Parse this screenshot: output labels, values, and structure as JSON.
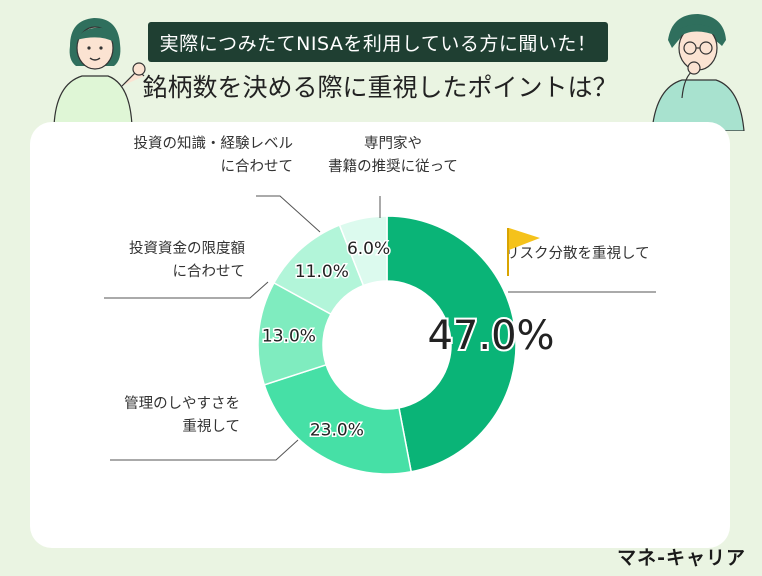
{
  "header": {
    "banner": "実際につみたてNISAを利用している方に聞いた！",
    "title": "銘柄数を決める際に重視したポイントは？"
  },
  "brand": "マネ-キャリア",
  "chart_data": {
    "type": "donut",
    "title": "銘柄数を決める際に重視したポイントは？",
    "slices": [
      {
        "label_lines": [
          "リスク分散を重視して"
        ],
        "value": 47.0,
        "display": "47.0%",
        "color": "#0ab477"
      },
      {
        "label_lines": [
          "管理のしやすさを",
          "重視して"
        ],
        "value": 23.0,
        "display": "23.0%",
        "color": "#46e0a6"
      },
      {
        "label_lines": [
          "投資資金の限度額",
          "に合わせて"
        ],
        "value": 13.0,
        "display": "13.0%",
        "color": "#7fecbf"
      },
      {
        "label_lines": [
          "投資の知識・経験レベル",
          "に合わせて"
        ],
        "value": 11.0,
        "display": "11.0%",
        "color": "#b2f5d9"
      },
      {
        "label_lines": [
          "専門家や",
          "書籍の推奨に従って"
        ],
        "value": 6.0,
        "display": "6.0%",
        "color": "#dcfaee"
      }
    ]
  }
}
